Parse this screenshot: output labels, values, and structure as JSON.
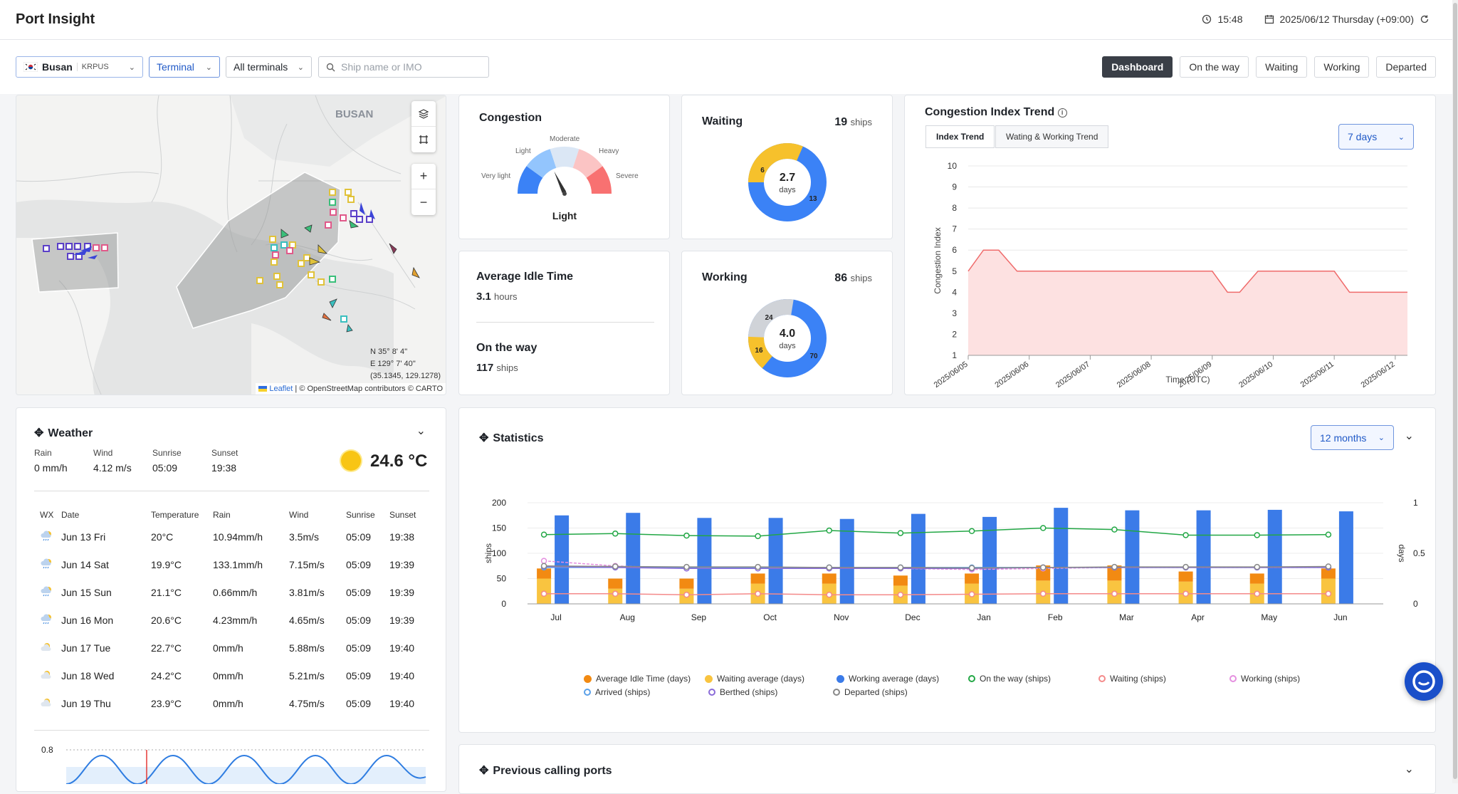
{
  "app": {
    "title": "Port Insight"
  },
  "header": {
    "time": "15:48",
    "date": "2025/06/12 Thursday (+09:00)"
  },
  "filters": {
    "port_name": "Busan",
    "port_code": "KRPUS",
    "terminal": "Terminal",
    "all_terminals": "All terminals",
    "search_placeholder": "Ship name or IMO"
  },
  "tabs": [
    "Dashboard",
    "On the way",
    "Waiting",
    "Working",
    "Departed"
  ],
  "map": {
    "city_label": "BUSAN",
    "coord_n": "N 35° 8' 4''",
    "coord_e": "E 129° 7' 40''",
    "coord_dec": "(35.1345, 129.1278)",
    "attribution_link": "Leaflet",
    "attribution_text": "| © OpenStreetMap contributors © CARTO"
  },
  "congestion": {
    "title": "Congestion",
    "level": "Light",
    "labels": {
      "very_light": "Very light",
      "light": "Light",
      "moderate": "Moderate",
      "heavy": "Heavy",
      "severe": "Severe"
    },
    "colors": [
      "#3b82f6",
      "#93c5fd",
      "#dbe7f5",
      "#fbc4c4",
      "#f87171"
    ]
  },
  "waiting": {
    "title": "Waiting",
    "count": "19",
    "unit": "ships",
    "center_value": "2.7",
    "center_unit": "days",
    "seg_a": "6",
    "seg_b": "13"
  },
  "working": {
    "title": "Working",
    "count": "86",
    "unit": "ships",
    "center_value": "4.0",
    "center_unit": "days",
    "seg_a": "24",
    "seg_b": "16",
    "seg_c": "70"
  },
  "idle": {
    "title": "Average Idle Time",
    "value": "3.1",
    "unit": "hours",
    "otw_title": "On the way",
    "otw_value": "117",
    "otw_unit": "ships"
  },
  "trend": {
    "title": "Congestion Index Trend",
    "tab1": "Index Trend",
    "tab2": "Wating & Working Trend",
    "range": "7 days",
    "ylabel": "Congestion Index",
    "xlabel": "Time (UTC)"
  },
  "weather": {
    "title": "Weather",
    "rain_label": "Rain",
    "rain": "0 mm/h",
    "wind_label": "Wind",
    "wind": "4.12 m/s",
    "sunrise_label": "Sunrise",
    "sunrise": "05:09",
    "sunset_label": "Sunset",
    "sunset": "19:38",
    "temp": "24.6 °C",
    "headers": [
      "WX",
      "Date",
      "Temperature",
      "Rain",
      "Wind",
      "Sunrise",
      "Sunset"
    ],
    "rows": [
      {
        "icon": "rain",
        "date": "Jun 13 Fri",
        "temp": "20°C",
        "rain": "10.94mm/h",
        "wind": "3.5m/s",
        "sunrise": "05:09",
        "sunset": "19:38"
      },
      {
        "icon": "rain",
        "date": "Jun 14 Sat",
        "temp": "19.9°C",
        "rain": "133.1mm/h",
        "wind": "7.15m/s",
        "sunrise": "05:09",
        "sunset": "19:39"
      },
      {
        "icon": "rain",
        "date": "Jun 15 Sun",
        "temp": "21.1°C",
        "rain": "0.66mm/h",
        "wind": "3.81m/s",
        "sunrise": "05:09",
        "sunset": "19:39"
      },
      {
        "icon": "rain",
        "date": "Jun 16 Mon",
        "temp": "20.6°C",
        "rain": "4.23mm/h",
        "wind": "4.65m/s",
        "sunrise": "05:09",
        "sunset": "19:39"
      },
      {
        "icon": "cloud-sun",
        "date": "Jun 17 Tue",
        "temp": "22.7°C",
        "rain": "0mm/h",
        "wind": "5.88m/s",
        "sunrise": "05:09",
        "sunset": "19:40"
      },
      {
        "icon": "cloud-sun",
        "date": "Jun 18 Wed",
        "temp": "24.2°C",
        "rain": "0mm/h",
        "wind": "5.21m/s",
        "sunrise": "05:09",
        "sunset": "19:40"
      },
      {
        "icon": "cloud-sun",
        "date": "Jun 19 Thu",
        "temp": "23.9°C",
        "rain": "0mm/h",
        "wind": "4.75m/s",
        "sunrise": "05:09",
        "sunset": "19:40"
      }
    ],
    "tide_label": "0.8"
  },
  "statistics": {
    "title": "Statistics",
    "range": "12 months"
  },
  "previous": {
    "title": "Previous calling ports"
  },
  "chart_data": [
    {
      "type": "line",
      "title": "Congestion Index Trend",
      "ylabel": "Congestion Index",
      "xlabel": "Time (UTC)",
      "ylim": [
        1,
        10
      ],
      "yticks": [
        1,
        2,
        3,
        4,
        5,
        6,
        7,
        8,
        9,
        10
      ],
      "x_ticks": [
        "2025/06/05",
        "2025/06/06",
        "2025/06/07",
        "2025/06/08",
        "2025/06/09",
        "2025/06/10",
        "2025/06/11",
        "2025/06/12"
      ],
      "x": [
        0,
        0.25,
        0.5,
        0.8,
        1,
        2,
        3,
        4,
        4.25,
        4.45,
        4.75,
        5,
        6,
        6.25,
        7,
        7.2
      ],
      "y": [
        5,
        6,
        6,
        5,
        5,
        5,
        5,
        5,
        4,
        4,
        5,
        5,
        5,
        4,
        4,
        4
      ]
    },
    {
      "type": "bar",
      "title": "Statistics",
      "categories": [
        "Jul",
        "Aug",
        "Sep",
        "Oct",
        "Nov",
        "Dec",
        "Jan",
        "Feb",
        "Mar",
        "Apr",
        "May",
        "Jun"
      ],
      "left_axis": "ships",
      "right_axis": "days",
      "ylim_left": [
        0,
        200
      ],
      "ylim_right": [
        0,
        1
      ],
      "yticks_left": [
        0,
        50,
        100,
        150,
        200
      ],
      "yticks_right": [
        0,
        0.5,
        1
      ],
      "series": [
        {
          "name": "Average Idle Time (days)",
          "axis": "right",
          "kind": "bar-stack",
          "color": "#f28a12",
          "values": [
            0.1,
            0.1,
            0.1,
            0.1,
            0.1,
            0.1,
            0.1,
            0.15,
            0.15,
            0.1,
            0.1,
            0.1
          ]
        },
        {
          "name": "Waiting average (days)",
          "axis": "right",
          "kind": "bar-stack",
          "color": "#f9c440",
          "values": [
            0.25,
            0.15,
            0.15,
            0.2,
            0.2,
            0.18,
            0.2,
            0.23,
            0.23,
            0.22,
            0.2,
            0.25
          ]
        },
        {
          "name": "Working average (days)",
          "axis": "left",
          "kind": "bar",
          "color": "#3b7be8",
          "values": [
            175,
            180,
            170,
            170,
            168,
            178,
            172,
            190,
            185,
            185,
            186,
            183
          ]
        },
        {
          "name": "On the way (ships)",
          "axis": "left",
          "kind": "line",
          "color": "#22a745",
          "values": [
            137,
            139,
            135,
            134,
            145,
            140,
            144,
            150,
            147,
            136,
            136,
            137
          ]
        },
        {
          "name": "Waiting (ships)",
          "axis": "left",
          "kind": "line",
          "color": "#f48a8a",
          "values": [
            20,
            20,
            18,
            20,
            18,
            18,
            19,
            20,
            20,
            20,
            20,
            20
          ]
        },
        {
          "name": "Working (ships)",
          "axis": "left",
          "kind": "line",
          "color": "#e58fe0",
          "values": [
            85,
            75,
            70,
            72,
            70,
            70,
            68,
            70,
            72,
            72,
            72,
            72
          ]
        },
        {
          "name": "Arrived (ships)",
          "axis": "left",
          "kind": "line",
          "color": "#5aa0e8",
          "values": [
            72,
            72,
            72,
            72,
            72,
            72,
            72,
            72,
            72,
            72,
            72,
            72
          ]
        },
        {
          "name": "Berthed (ships)",
          "axis": "left",
          "kind": "line",
          "color": "#8a6bd8",
          "values": [
            74,
            72,
            70,
            70,
            70,
            70,
            70,
            72,
            72,
            72,
            72,
            72
          ]
        },
        {
          "name": "Departed (ships)",
          "axis": "left",
          "kind": "line",
          "color": "#888888",
          "values": [
            75,
            74,
            73,
            73,
            72,
            72,
            71,
            72,
            73,
            73,
            73,
            74
          ]
        }
      ]
    }
  ]
}
